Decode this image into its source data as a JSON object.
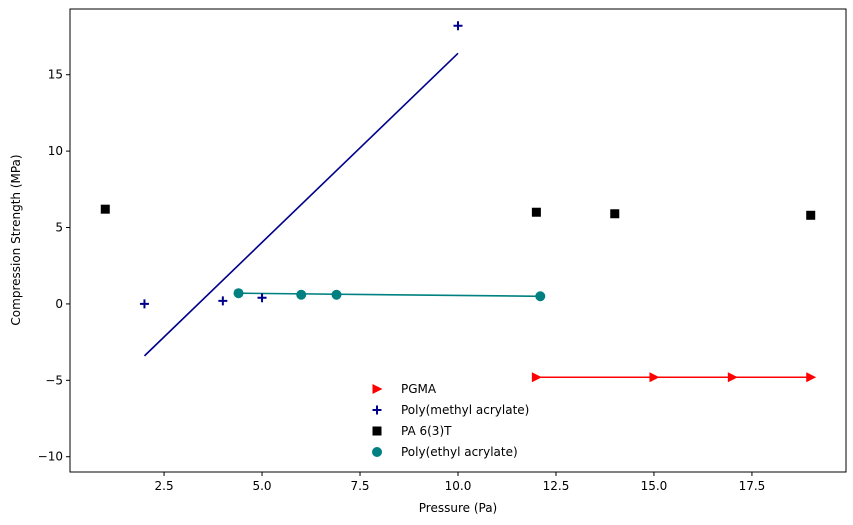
{
  "chart_data": {
    "type": "scatter",
    "xlabel": "Pressure (Pa)",
    "ylabel": "Compression Strength (MPa)",
    "xlim": [
      0.1,
      19.9
    ],
    "ylim": [
      -11.0,
      19.3
    ],
    "xticks": [
      2.5,
      5.0,
      7.5,
      10.0,
      12.5,
      15.0,
      17.5
    ],
    "xtick_labels": [
      "2.5",
      "5.0",
      "7.5",
      "10.0",
      "12.5",
      "15.0",
      "17.5"
    ],
    "yticks": [
      -10,
      -5,
      0,
      5,
      10,
      15
    ],
    "ytick_labels": [
      "−10",
      "−5",
      "0",
      "5",
      "10",
      "15"
    ],
    "grid": false,
    "legend_position": "lower-center",
    "series": [
      {
        "name": "PGMA",
        "marker": "triangle-right",
        "color": "#ff0000",
        "x": [
          12,
          15,
          17,
          19
        ],
        "y": [
          -4.8,
          -4.8,
          -4.8,
          -4.8
        ],
        "line": {
          "x": [
            12,
            19
          ],
          "y": [
            -4.8,
            -4.8
          ]
        }
      },
      {
        "name": "Poly(methyl acrylate)",
        "marker": "plus",
        "color": "#00008b",
        "x": [
          2,
          4,
          5,
          10
        ],
        "y": [
          0.0,
          0.2,
          0.4,
          18.2
        ],
        "line": {
          "x": [
            2,
            10
          ],
          "y": [
            -3.4,
            16.4
          ]
        }
      },
      {
        "name": "PA 6(3)T",
        "marker": "square",
        "color": "#000000",
        "x": [
          1,
          12,
          14,
          19
        ],
        "y": [
          6.2,
          6.0,
          5.9,
          5.8
        ]
      },
      {
        "name": "Poly(ethyl acrylate)",
        "marker": "circle",
        "color": "#008080",
        "x": [
          4.4,
          6.0,
          6.9,
          12.1
        ],
        "y": [
          0.7,
          0.6,
          0.6,
          0.5
        ],
        "line": {
          "x": [
            4.4,
            12.1
          ],
          "y": [
            0.7,
            0.5
          ]
        }
      }
    ]
  }
}
